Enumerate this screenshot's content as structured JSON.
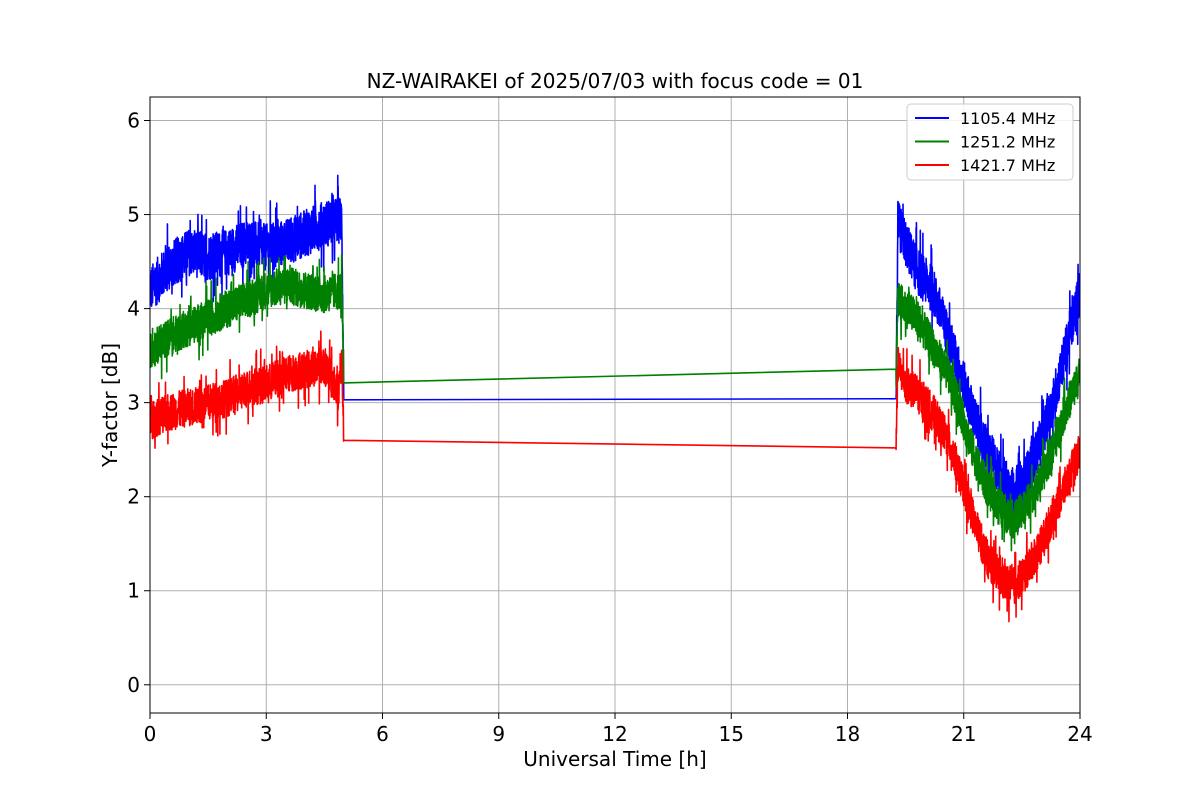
{
  "chart_data": {
    "type": "line",
    "title": "NZ-WAIRAKEI of 2025/07/03 with focus code = 01",
    "xlabel": "Universal Time [h]",
    "ylabel": "Y-factor [dB]",
    "xlim": [
      0,
      24
    ],
    "ylim": [
      -0.3,
      6.25
    ],
    "xticks": [
      0,
      3,
      6,
      9,
      12,
      15,
      18,
      21,
      24
    ],
    "xtick_labels": [
      "0",
      "3",
      "6",
      "9",
      "12",
      "15",
      "18",
      "21",
      "24"
    ],
    "yticks": [
      0,
      1,
      2,
      3,
      4,
      5,
      6
    ],
    "ytick_labels": [
      "0",
      "1",
      "2",
      "3",
      "4",
      "5",
      "6"
    ],
    "grid": true,
    "legend_position": "top-right",
    "series": [
      {
        "name": "1105.4 MHz",
        "color": "#0000ff",
        "noise": 0.25,
        "x": [
          0,
          0.5,
          1.0,
          1.5,
          2.0,
          2.5,
          3.0,
          3.5,
          4.0,
          4.5,
          4.95,
          5.0,
          19.25,
          19.3,
          19.5,
          19.8,
          20.2,
          20.6,
          21.0,
          21.3,
          21.6,
          22.0,
          22.3,
          22.6,
          23.0,
          23.3,
          23.6,
          24.0
        ],
        "y": [
          4.2,
          4.45,
          4.6,
          4.55,
          4.6,
          4.7,
          4.65,
          4.7,
          4.8,
          4.9,
          4.95,
          3.03,
          2.88,
          4.9,
          4.7,
          4.4,
          4.2,
          3.7,
          3.2,
          2.8,
          2.5,
          2.2,
          2.05,
          2.2,
          2.6,
          3.0,
          3.5,
          4.2
        ]
      },
      {
        "name": "1251.2 MHz",
        "color": "#008000",
        "noise": 0.2,
        "x": [
          0,
          0.5,
          1.0,
          1.5,
          2.0,
          2.5,
          3.0,
          3.5,
          4.0,
          4.5,
          4.95,
          5.0,
          19.25,
          19.3,
          19.5,
          19.8,
          20.2,
          20.6,
          21.0,
          21.3,
          21.6,
          22.0,
          22.3,
          22.6,
          23.0,
          23.3,
          23.6,
          24.0
        ],
        "y": [
          3.55,
          3.7,
          3.8,
          3.9,
          4.0,
          4.1,
          4.2,
          4.25,
          4.2,
          4.15,
          4.2,
          3.21,
          3.19,
          4.1,
          4.0,
          3.9,
          3.6,
          3.3,
          2.8,
          2.4,
          2.1,
          1.85,
          1.75,
          1.9,
          2.2,
          2.5,
          2.9,
          3.3
        ]
      },
      {
        "name": "1421.7 MHz",
        "color": "#ff0000",
        "noise": 0.2,
        "x": [
          0,
          0.5,
          1.0,
          1.5,
          2.0,
          2.5,
          3.0,
          3.5,
          4.0,
          4.5,
          4.85,
          4.95,
          5.0,
          19.25,
          19.3,
          19.5,
          19.8,
          20.2,
          20.6,
          21.0,
          21.3,
          21.6,
          22.0,
          22.3,
          22.6,
          23.0,
          23.3,
          23.6,
          24.0
        ],
        "y": [
          2.8,
          2.9,
          2.95,
          3.0,
          3.05,
          3.15,
          3.2,
          3.3,
          3.35,
          3.4,
          3.1,
          3.45,
          2.6,
          2.58,
          3.4,
          3.2,
          3.1,
          2.9,
          2.6,
          2.1,
          1.7,
          1.35,
          1.1,
          1.05,
          1.2,
          1.5,
          1.8,
          2.1,
          2.5
        ]
      }
    ]
  }
}
